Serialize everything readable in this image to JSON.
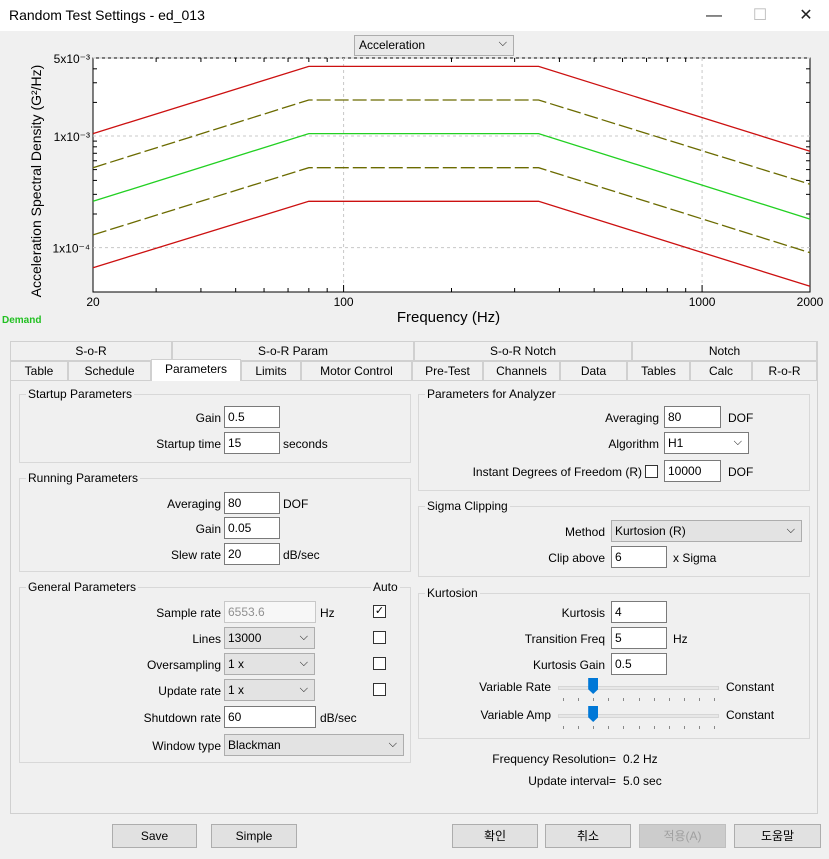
{
  "window": {
    "title": "Random Test Settings - ed_013",
    "minimize": "—",
    "maximize": "☐",
    "close": "✕"
  },
  "plot": {
    "selector_value": "Acceleration",
    "ylabel": "Acceleration Spectral Density (G²/Hz)",
    "xlabel": "Frequency (Hz)",
    "ytick_labels": [
      "5x10⁻³",
      "1x10⁻³",
      "1x10⁻⁴"
    ],
    "xtick_labels": [
      "20",
      "100",
      "1000",
      "2000"
    ],
    "demand_label": "Demand",
    "colors": {
      "demand": "#22d022",
      "alarm": "#6b6b00",
      "abort": "#cc1010"
    }
  },
  "chart_data": {
    "type": "line",
    "title": "",
    "xlabel": "Frequency (Hz)",
    "ylabel": "Acceleration Spectral Density (G²/Hz)",
    "xscale": "log",
    "yscale": "log",
    "xlim": [
      20,
      2000
    ],
    "ylim": [
      4e-05,
      0.005
    ],
    "series": [
      {
        "name": "Upper abort",
        "style": "solid",
        "color": "#cc1010",
        "x": [
          20,
          80,
          350,
          2000
        ],
        "y": [
          0.00105,
          0.0042,
          0.0042,
          0.00073
        ]
      },
      {
        "name": "Upper alarm",
        "style": "dashed",
        "color": "#6b6b00",
        "x": [
          20,
          80,
          350,
          2000
        ],
        "y": [
          0.00052,
          0.0021,
          0.0021,
          0.00037
        ]
      },
      {
        "name": "Demand",
        "style": "solid",
        "color": "#22d022",
        "x": [
          20,
          80,
          350,
          2000
        ],
        "y": [
          0.00026,
          0.00105,
          0.00105,
          0.00018
        ]
      },
      {
        "name": "Lower alarm",
        "style": "dashed",
        "color": "#6b6b00",
        "x": [
          20,
          80,
          350,
          2000
        ],
        "y": [
          0.00013,
          0.00052,
          0.00052,
          9e-05
        ]
      },
      {
        "name": "Lower abort",
        "style": "solid",
        "color": "#cc1010",
        "x": [
          20,
          80,
          350,
          2000
        ],
        "y": [
          6.6e-05,
          0.00026,
          0.00026,
          4.5e-05
        ]
      }
    ],
    "grid": true
  },
  "tabs": {
    "row1": [
      "S-o-R",
      "S-o-R Param",
      "S-o-R Notch",
      "Notch"
    ],
    "row2": [
      "Table",
      "Schedule",
      "Parameters",
      "Limits",
      "Motor Control",
      "Pre-Test",
      "Channels",
      "Data",
      "Tables",
      "Calc",
      "R-o-R"
    ],
    "active": "Parameters"
  },
  "startup": {
    "title": "Startup Parameters",
    "gain_label": "Gain",
    "gain": "0.5",
    "time_label": "Startup time",
    "time": "15",
    "time_unit": "seconds"
  },
  "running": {
    "title": "Running Parameters",
    "averaging_label": "Averaging",
    "averaging": "80",
    "averaging_unit": "DOF",
    "gain_label": "Gain",
    "gain": "0.05",
    "slew_label": "Slew rate",
    "slew": "20",
    "slew_unit": "dB/sec"
  },
  "general": {
    "title": "General Parameters",
    "auto_label": "Auto",
    "sample_rate_label": "Sample rate",
    "sample_rate": "6553.6",
    "sample_rate_unit": "Hz",
    "sample_rate_auto": "✓",
    "lines_label": "Lines",
    "lines": "13000",
    "oversampling_label": "Oversampling",
    "oversampling": "1 x",
    "update_rate_label": "Update rate",
    "update_rate": "1 x",
    "shutdown_label": "Shutdown rate",
    "shutdown": "60",
    "shutdown_unit": "dB/sec",
    "window_label": "Window type",
    "window": "Blackman"
  },
  "analyzer": {
    "title": "Parameters for Analyzer",
    "averaging_label": "Averaging",
    "averaging": "80",
    "averaging_unit": "DOF",
    "algorithm_label": "Algorithm",
    "algorithm": "H1",
    "idof_label": "Instant Degrees of Freedom (R)",
    "idof": "10000",
    "idof_unit": "DOF"
  },
  "sigma": {
    "title": "Sigma Clipping",
    "method_label": "Method",
    "method": "Kurtosion (R)",
    "clip_label": "Clip above",
    "clip": "6",
    "clip_unit": "x Sigma"
  },
  "kurtosion": {
    "title": "Kurtosion",
    "kurtosis_label": "Kurtosis",
    "kurtosis": "4",
    "transition_label": "Transition Freq",
    "transition": "5",
    "transition_unit": "Hz",
    "gain_label": "Kurtosis Gain",
    "gain": "0.5",
    "var_rate_label": "Variable Rate",
    "var_rate_value": "Constant",
    "var_amp_label": "Variable Amp",
    "var_amp_value": "Constant",
    "var_rate_position": 0.2,
    "var_amp_position": 0.2
  },
  "info": {
    "freq_res_label": "Frequency Resolution=",
    "freq_res": "0.2 Hz",
    "update_interval_label": "Update interval=",
    "update_interval": "5.0 sec"
  },
  "buttons": {
    "save": "Save",
    "simple": "Simple",
    "ok": "확인",
    "cancel": "취소",
    "apply": "적용(A)",
    "help": "도움말"
  }
}
